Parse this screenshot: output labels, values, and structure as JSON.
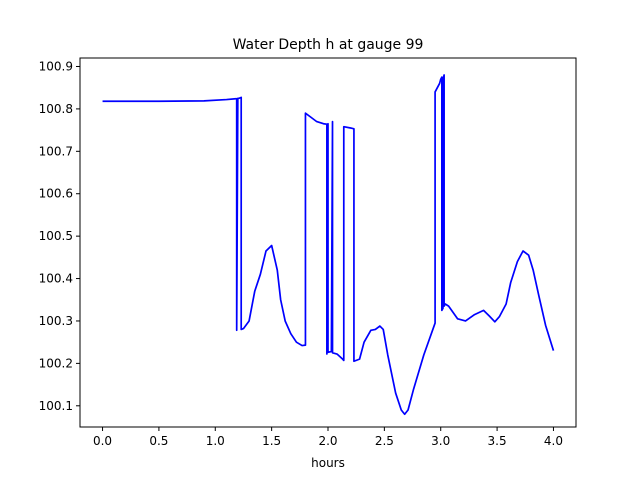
{
  "chart_data": {
    "type": "line",
    "title": "Water Depth h at gauge 99",
    "xlabel": "hours",
    "ylabel": "",
    "xlim": [
      -0.2,
      4.2
    ],
    "ylim": [
      100.05,
      100.92
    ],
    "xticks": [
      0.0,
      0.5,
      1.0,
      1.5,
      2.0,
      2.5,
      3.0,
      3.5,
      4.0
    ],
    "xtick_labels": [
      "0.0",
      "0.5",
      "1.0",
      "1.5",
      "2.0",
      "2.5",
      "3.0",
      "3.5",
      "4.0"
    ],
    "yticks": [
      100.1,
      100.2,
      100.3,
      100.4,
      100.5,
      100.6,
      100.7,
      100.8,
      100.9
    ],
    "ytick_labels": [
      "100.1",
      "100.2",
      "100.3",
      "100.4",
      "100.5",
      "100.6",
      "100.7",
      "100.8",
      "100.9"
    ],
    "grid": false,
    "series": [
      {
        "color": "#0000ff",
        "x": [
          0.0,
          0.5,
          0.9,
          1.1,
          1.18,
          1.19,
          1.19,
          1.2,
          1.21,
          1.22,
          1.23,
          1.23,
          1.25,
          1.3,
          1.35,
          1.4,
          1.45,
          1.5,
          1.55,
          1.58,
          1.62,
          1.67,
          1.72,
          1.77,
          1.8,
          1.8,
          1.85,
          1.9,
          1.96,
          1.99,
          1.99,
          2.0,
          2.0,
          2.03,
          2.04,
          2.04,
          2.08,
          2.13,
          2.14,
          2.14,
          2.2,
          2.23,
          2.23,
          2.28,
          2.32,
          2.38,
          2.42,
          2.46,
          2.49,
          2.53,
          2.6,
          2.65,
          2.68,
          2.71,
          2.76,
          2.85,
          2.93,
          2.95,
          2.95,
          2.99,
          3.0,
          3.01,
          3.01,
          3.02,
          3.02,
          3.03,
          3.03,
          3.04,
          3.07,
          3.15,
          3.22,
          3.3,
          3.38,
          3.43,
          3.48,
          3.52,
          3.58,
          3.62,
          3.68,
          3.73,
          3.78,
          3.82,
          3.87,
          3.93,
          4.0
        ],
        "y": [
          100.818,
          100.818,
          100.819,
          100.822,
          100.824,
          100.824,
          100.278,
          100.825,
          100.825,
          100.826,
          100.827,
          100.28,
          100.282,
          100.3,
          100.37,
          100.41,
          100.465,
          100.478,
          100.42,
          100.35,
          100.3,
          100.27,
          100.25,
          100.242,
          100.243,
          100.79,
          100.78,
          100.77,
          100.765,
          100.764,
          100.222,
          100.765,
          100.226,
          100.228,
          100.77,
          100.225,
          100.222,
          100.21,
          100.207,
          100.758,
          100.755,
          100.753,
          100.205,
          100.21,
          100.25,
          100.278,
          100.28,
          100.288,
          100.28,
          100.22,
          100.13,
          100.09,
          100.08,
          100.09,
          100.14,
          100.22,
          100.28,
          100.295,
          100.84,
          100.86,
          100.87,
          100.875,
          100.325,
          100.33,
          100.87,
          100.88,
          100.335,
          100.34,
          100.335,
          100.305,
          100.3,
          100.315,
          100.325,
          100.312,
          100.298,
          100.31,
          100.34,
          100.39,
          100.44,
          100.465,
          100.455,
          100.42,
          100.36,
          100.29,
          100.23
        ]
      }
    ]
  }
}
